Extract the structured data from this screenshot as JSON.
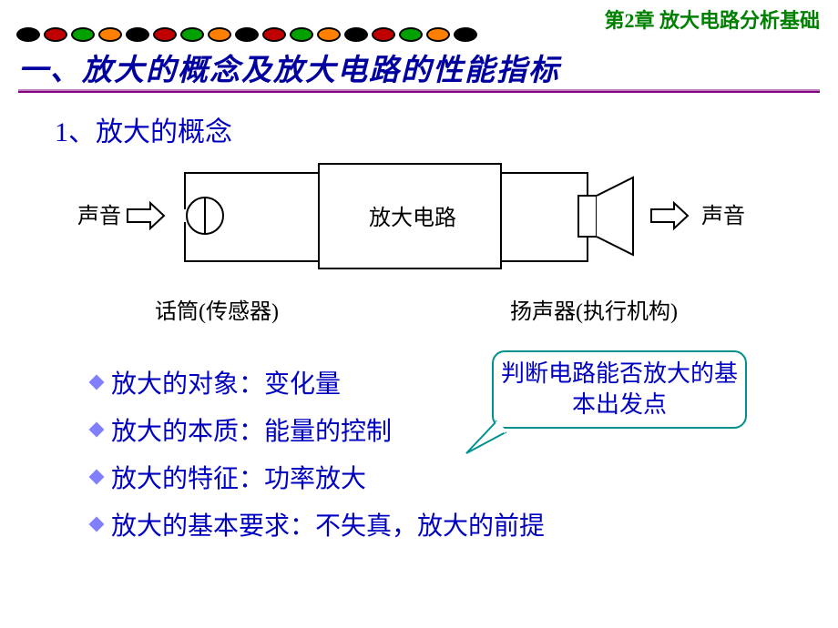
{
  "chapterHeader": "第2章  放大电路分析基础",
  "beads": [
    {
      "color": "#000000"
    },
    {
      "color": "#c00000"
    },
    {
      "color": "#00a000"
    },
    {
      "color": "#ff8000"
    },
    {
      "color": "#000000"
    },
    {
      "color": "#c00000"
    },
    {
      "color": "#00a000"
    },
    {
      "color": "#ff8000"
    },
    {
      "color": "#000000"
    },
    {
      "color": "#c00000"
    },
    {
      "color": "#00a000"
    },
    {
      "color": "#ff8000"
    },
    {
      "color": "#000000"
    },
    {
      "color": "#c00000"
    },
    {
      "color": "#00a000"
    },
    {
      "color": "#ff8000"
    },
    {
      "color": "#000000"
    }
  ],
  "mainTitle": "一、放大的概念及放大电路的性能指标",
  "sectionHeader": "1、放大的概念",
  "diagram": {
    "leftLabel": "声音",
    "rightLabel": "声音",
    "centerLabel": "放大电路",
    "micLabel": "话筒(传感器)",
    "speakerLabel": "扬声器(执行机构)"
  },
  "bullets": [
    "放大的对象：变化量",
    "放大的本质：能量的控制",
    "放大的特征：功率放大",
    "放大的基本要求：不失真，放大的前提"
  ],
  "callout": "判断电路能否放大的基本出发点",
  "colors": {
    "heading_green": "#008000",
    "text_blue": "#0000c0",
    "callout_border": "#009090",
    "diamond": "#8080ff"
  },
  "fonts": {
    "chapter_size": 22,
    "title_size": 33,
    "section_size": 30,
    "bullet_size": 28,
    "diagram_size": 24,
    "callout_size": 26
  }
}
